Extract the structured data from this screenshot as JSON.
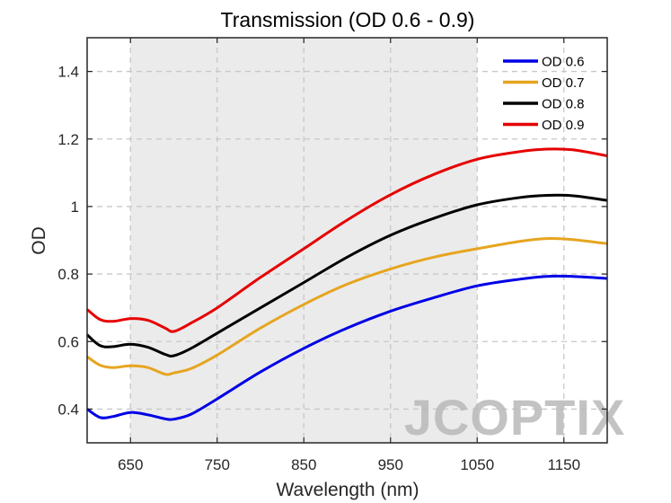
{
  "chart_data": {
    "type": "line",
    "title": "Transmission (OD 0.6 - 0.9)",
    "xlabel": "Wavelength (nm)",
    "ylabel": "OD",
    "xlim": [
      600,
      1200
    ],
    "ylim": [
      0.3,
      1.5
    ],
    "xticks": [
      650,
      750,
      850,
      950,
      1050,
      1150
    ],
    "yticks": [
      0.4,
      0.6,
      0.8,
      1.0,
      1.2,
      1.4
    ],
    "xtick_labels": [
      "650",
      "750",
      "850",
      "950",
      "1050",
      "1150"
    ],
    "ytick_labels": [
      "0.4",
      "0.6",
      "0.8",
      "1",
      "1.2",
      "1.4"
    ],
    "grid": true,
    "shaded_region": {
      "x": [
        650,
        1050
      ],
      "color": "#ebebeb"
    },
    "legend_position": "top-right",
    "x": [
      600,
      615,
      630,
      650,
      670,
      690,
      700,
      720,
      750,
      800,
      850,
      900,
      950,
      1000,
      1050,
      1100,
      1130,
      1160,
      1200
    ],
    "series": [
      {
        "name": "OD 0.6",
        "color": "#0000e6",
        "values": [
          0.4,
          0.375,
          0.378,
          0.39,
          0.383,
          0.371,
          0.37,
          0.385,
          0.43,
          0.51,
          0.58,
          0.64,
          0.69,
          0.73,
          0.765,
          0.785,
          0.793,
          0.793,
          0.787
        ]
      },
      {
        "name": "OD 0.7",
        "color": "#e6a520",
        "values": [
          0.555,
          0.53,
          0.523,
          0.528,
          0.523,
          0.503,
          0.507,
          0.52,
          0.56,
          0.64,
          0.71,
          0.77,
          0.815,
          0.85,
          0.875,
          0.897,
          0.905,
          0.902,
          0.89
        ]
      },
      {
        "name": "OD 0.8",
        "color": "#000000",
        "values": [
          0.62,
          0.588,
          0.585,
          0.592,
          0.583,
          0.562,
          0.558,
          0.58,
          0.625,
          0.7,
          0.775,
          0.85,
          0.915,
          0.965,
          1.005,
          1.027,
          1.033,
          1.032,
          1.018
        ]
      },
      {
        "name": "OD 0.9",
        "color": "#e60000",
        "values": [
          0.695,
          0.665,
          0.66,
          0.668,
          0.663,
          0.64,
          0.63,
          0.655,
          0.7,
          0.79,
          0.875,
          0.96,
          1.035,
          1.095,
          1.14,
          1.163,
          1.17,
          1.168,
          1.15
        ]
      }
    ]
  },
  "watermark": {
    "text": "JCOPTIX"
  }
}
